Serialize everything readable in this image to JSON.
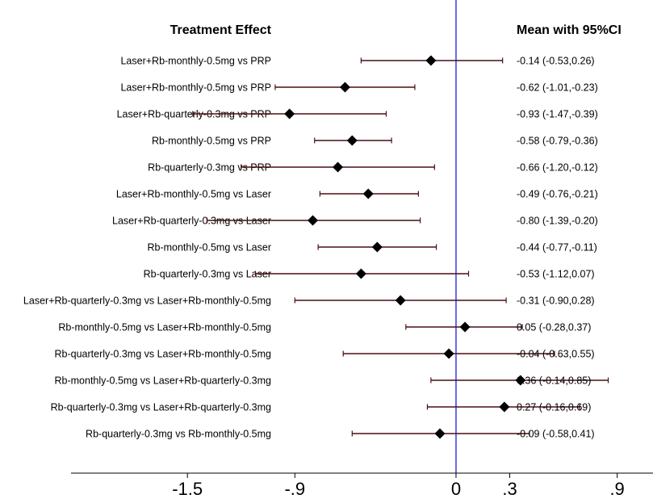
{
  "chart_data": {
    "type": "forest",
    "title": "",
    "left_header": "Treatment Effect",
    "right_header": "Mean with 95%CI",
    "xlabel": "",
    "ylabel": "",
    "xlim": [
      -2.15,
      1.1
    ],
    "xticks": [
      -1.5,
      -0.9,
      0,
      0.3,
      0.9
    ],
    "xtick_labels": [
      "-1.5",
      "-.9",
      "0",
      ".3",
      ".9"
    ],
    "reference_line": 0,
    "ci_color": "#4a0f14",
    "marker_color": "#000000",
    "reference_color": "#1f1fd6",
    "rows": [
      {
        "label": "Laser+Rb-monthly-0.5mg vs PRP",
        "mean": -0.14,
        "lower": -0.53,
        "upper": 0.26,
        "text": "-0.14 (-0.53,0.26)"
      },
      {
        "label": "Laser+Rb-monthly-0.5mg vs PRP",
        "mean": -0.62,
        "lower": -1.01,
        "upper": -0.23,
        "text": "-0.62 (-1.01,-0.23)"
      },
      {
        "label": "Laser+Rb-quarterly-0.3mg vs PRP",
        "mean": -0.93,
        "lower": -1.47,
        "upper": -0.39,
        "text": "-0.93 (-1.47,-0.39)"
      },
      {
        "label": "Rb-monthly-0.5mg vs PRP",
        "mean": -0.58,
        "lower": -0.79,
        "upper": -0.36,
        "text": "-0.58 (-0.79,-0.36)"
      },
      {
        "label": "Rb-quarterly-0.3mg vs PRP",
        "mean": -0.66,
        "lower": -1.2,
        "upper": -0.12,
        "text": "-0.66 (-1.20,-0.12)"
      },
      {
        "label": "Laser+Rb-monthly-0.5mg vs Laser",
        "mean": -0.49,
        "lower": -0.76,
        "upper": -0.21,
        "text": "-0.49 (-0.76,-0.21)"
      },
      {
        "label": "Laser+Rb-quarterly-0.3mg vs Laser",
        "mean": -0.8,
        "lower": -1.39,
        "upper": -0.2,
        "text": "-0.80 (-1.39,-0.20)"
      },
      {
        "label": "Rb-monthly-0.5mg vs Laser",
        "mean": -0.44,
        "lower": -0.77,
        "upper": -0.11,
        "text": "-0.44 (-0.77,-0.11)"
      },
      {
        "label": "Rb-quarterly-0.3mg vs Laser",
        "mean": -0.53,
        "lower": -1.12,
        "upper": 0.07,
        "text": "-0.53 (-1.12,0.07)"
      },
      {
        "label": "Laser+Rb-quarterly-0.3mg vs Laser+Rb-monthly-0.5mg",
        "mean": -0.31,
        "lower": -0.9,
        "upper": 0.28,
        "text": "-0.31 (-0.90,0.28)"
      },
      {
        "label": "Rb-monthly-0.5mg vs Laser+Rb-monthly-0.5mg",
        "mean": 0.05,
        "lower": -0.28,
        "upper": 0.37,
        "text": "0.05 (-0.28,0.37)"
      },
      {
        "label": "Rb-quarterly-0.3mg vs Laser+Rb-monthly-0.5mg",
        "mean": -0.04,
        "lower": -0.63,
        "upper": 0.55,
        "text": "-0.04 (-0.63,0.55)"
      },
      {
        "label": "Rb-monthly-0.5mg vs Laser+Rb-quarterly-0.3mg",
        "mean": 0.36,
        "lower": -0.14,
        "upper": 0.85,
        "text": "0.36 (-0.14,0.85)"
      },
      {
        "label": "Rb-quarterly-0.3mg vs Laser+Rb-quarterly-0.3mg",
        "mean": 0.27,
        "lower": -0.16,
        "upper": 0.69,
        "text": "0.27 (-0.16,0.69)"
      },
      {
        "label": "Rb-quarterly-0.3mg vs Rb-monthly-0.5mg",
        "mean": -0.09,
        "lower": -0.58,
        "upper": 0.41,
        "text": "-0.09 (-0.58,0.41)"
      }
    ]
  }
}
